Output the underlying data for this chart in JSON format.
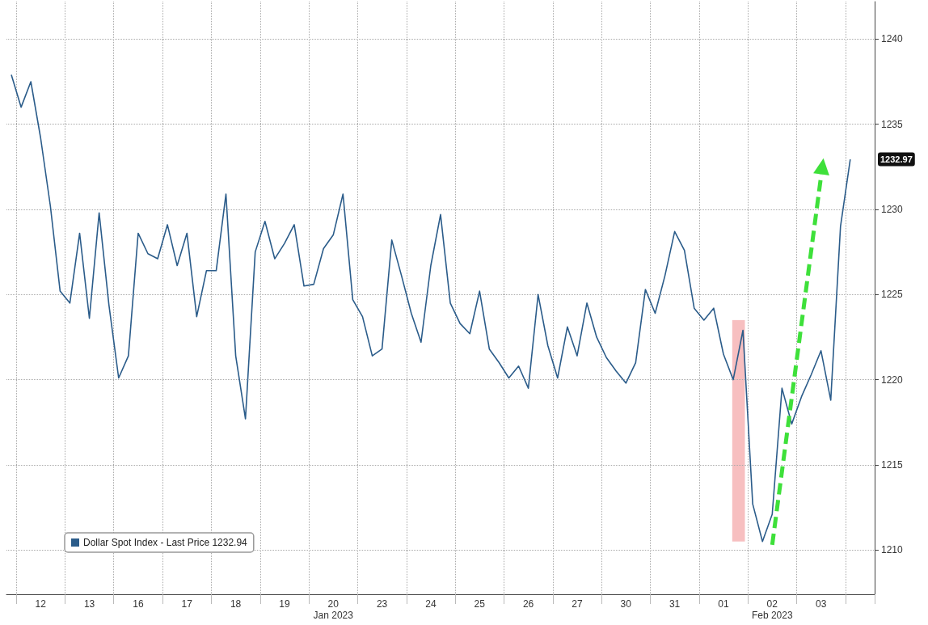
{
  "chart_data": {
    "type": "line",
    "categories": [
      null,
      null,
      null,
      "12",
      null,
      null,
      null,
      null,
      "13",
      null,
      null,
      null,
      null,
      "16",
      null,
      null,
      null,
      null,
      "17",
      null,
      null,
      null,
      null,
      "18",
      null,
      null,
      null,
      null,
      "19",
      null,
      null,
      null,
      null,
      "20",
      null,
      null,
      null,
      null,
      "23",
      null,
      null,
      null,
      null,
      "24",
      null,
      null,
      null,
      null,
      "25",
      null,
      null,
      null,
      null,
      "26",
      null,
      null,
      null,
      null,
      "27",
      null,
      null,
      null,
      null,
      "30",
      null,
      null,
      null,
      null,
      "31",
      null,
      null,
      null,
      null,
      "01",
      null,
      null,
      null,
      null,
      "02",
      null,
      null,
      null,
      null,
      "03",
      null,
      null,
      null,
      null,
      null
    ],
    "series": [
      {
        "name": "Dollar Spot Index - Last Price 1232.94",
        "color": "#2b5c8a",
        "values": [
          1237.9,
          1236.0,
          1237.5,
          1234.2,
          1230.2,
          1225.2,
          1224.5,
          1228.6,
          1223.6,
          1229.8,
          1224.4,
          1220.1,
          1221.4,
          1228.6,
          1227.4,
          1227.1,
          1229.1,
          1226.7,
          1228.6,
          1223.7,
          1226.4,
          1226.4,
          1230.9,
          1221.4,
          1217.7,
          1227.5,
          1229.3,
          1227.1,
          1228.0,
          1229.1,
          1225.5,
          1225.6,
          1227.7,
          1228.5,
          1230.9,
          1224.7,
          1223.7,
          1221.4,
          1221.8,
          1228.2,
          1226.1,
          1223.9,
          1222.2,
          1226.7,
          1229.7,
          1224.5,
          1223.3,
          1222.7,
          1225.2,
          1221.8,
          1221.0,
          1220.1,
          1220.8,
          1219.5,
          1225.0,
          1222.0,
          1220.1,
          1223.1,
          1221.4,
          1224.5,
          1222.5,
          1221.3,
          1220.5,
          1219.8,
          1221.0,
          1225.3,
          1223.9,
          1226.1,
          1228.7,
          1227.6,
          1224.2,
          1223.5,
          1224.2,
          1221.5,
          1220.0,
          1222.9,
          1212.7,
          1210.5,
          1212.1,
          1219.5,
          1217.4,
          1219.0,
          1220.3,
          1221.7,
          1218.8,
          1229.0,
          1232.94,
          null,
          null
        ]
      }
    ],
    "ylim": [
      1207.4,
      1242.2
    ],
    "yticks": [
      1210,
      1215,
      1220,
      1225,
      1230,
      1235,
      1240
    ],
    "grid": true,
    "legend": "bottom left",
    "annotations": [
      "Jan 2023",
      "Feb 2023",
      "1232.97"
    ]
  }
}
